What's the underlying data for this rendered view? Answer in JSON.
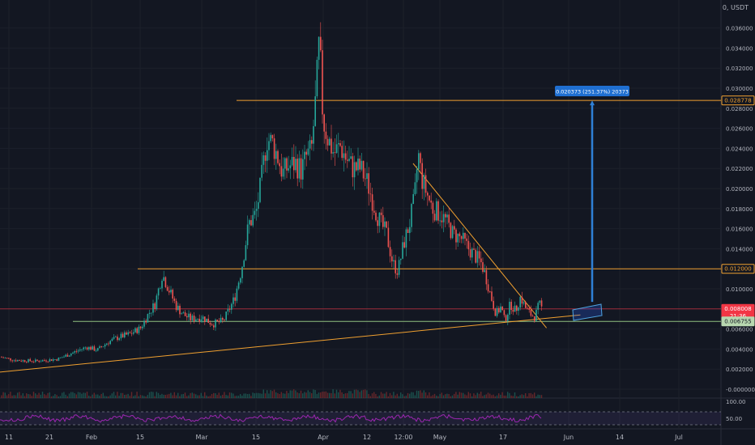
{
  "symbol_currency": "0, USDT",
  "chart_data": {
    "type": "candlestick",
    "ylim": [
      -0.0001,
      0.0374
    ],
    "y_ticks": [
      "0.036000",
      "0.034000",
      "0.032000",
      "0.030000",
      "0.028000",
      "0.026000",
      "0.024000",
      "0.022000",
      "0.020000",
      "0.018000",
      "0.016000",
      "0.014000",
      "0.012000",
      "0.010000",
      "0.008000",
      "0.006000",
      "0.004000",
      "0.002000",
      "-0.000000"
    ],
    "x_ticks": [
      "11",
      "21",
      "Feb",
      "15",
      "Mar",
      "15",
      "Apr",
      "12",
      "12:00",
      "May",
      "17",
      "Jun",
      "14",
      "Jul"
    ],
    "price_markers": [
      {
        "label": "0.028778",
        "color": "#f0a030",
        "style": "outline"
      },
      {
        "label": "0.012000",
        "color": "#f0a030",
        "style": "outline"
      },
      {
        "label": "0.008008",
        "sub": "21:36",
        "color": "#f23645",
        "style": "filled"
      },
      {
        "label": "0.006755",
        "color": "#b8d8b0",
        "style": "filled"
      }
    ],
    "horizontal_levels": [
      0.028778,
      0.012,
      0.008008,
      0.006755
    ],
    "measure_label": "0.020373 (251.37%) 20373",
    "trendlines": [
      {
        "from": [
          0.0,
          0.0017
        ],
        "to": [
          0.805,
          0.0074
        ],
        "color": "#f0a030"
      },
      {
        "from": [
          0.573,
          0.0225
        ],
        "to": [
          0.758,
          0.0061
        ],
        "color": "#f0a030"
      }
    ],
    "price_series": [
      [
        0.0,
        0.0032
      ],
      [
        0.02,
        0.0029
      ],
      [
        0.05,
        0.0028
      ],
      [
        0.08,
        0.003
      ],
      [
        0.1,
        0.0036
      ],
      [
        0.12,
        0.0042
      ],
      [
        0.135,
        0.0039
      ],
      [
        0.15,
        0.0047
      ],
      [
        0.165,
        0.0052
      ],
      [
        0.18,
        0.0055
      ],
      [
        0.195,
        0.0061
      ],
      [
        0.205,
        0.0074
      ],
      [
        0.215,
        0.0085
      ],
      [
        0.225,
        0.0115
      ],
      [
        0.235,
        0.0098
      ],
      [
        0.245,
        0.0082
      ],
      [
        0.255,
        0.0074
      ],
      [
        0.265,
        0.007
      ],
      [
        0.28,
        0.0072
      ],
      [
        0.295,
        0.0065
      ],
      [
        0.31,
        0.0068
      ],
      [
        0.325,
        0.009
      ],
      [
        0.335,
        0.012
      ],
      [
        0.345,
        0.0165
      ],
      [
        0.355,
        0.0175
      ],
      [
        0.362,
        0.0205
      ],
      [
        0.37,
        0.025
      ],
      [
        0.378,
        0.0245
      ],
      [
        0.385,
        0.0232
      ],
      [
        0.392,
        0.0215
      ],
      [
        0.4,
        0.0222
      ],
      [
        0.41,
        0.0225
      ],
      [
        0.418,
        0.0218
      ],
      [
        0.425,
        0.0232
      ],
      [
        0.432,
        0.0238
      ],
      [
        0.438,
        0.029
      ],
      [
        0.443,
        0.0348
      ],
      [
        0.448,
        0.0268
      ],
      [
        0.455,
        0.025
      ],
      [
        0.463,
        0.0235
      ],
      [
        0.472,
        0.0242
      ],
      [
        0.48,
        0.023
      ],
      [
        0.49,
        0.022
      ],
      [
        0.5,
        0.022
      ],
      [
        0.51,
        0.0205
      ],
      [
        0.52,
        0.018
      ],
      [
        0.528,
        0.0165
      ],
      [
        0.536,
        0.0155
      ],
      [
        0.545,
        0.0125
      ],
      [
        0.552,
        0.0118
      ],
      [
        0.56,
        0.0145
      ],
      [
        0.568,
        0.0165
      ],
      [
        0.575,
        0.019
      ],
      [
        0.58,
        0.0235
      ],
      [
        0.585,
        0.021
      ],
      [
        0.592,
        0.0195
      ],
      [
        0.6,
        0.018
      ],
      [
        0.61,
        0.0175
      ],
      [
        0.618,
        0.0168
      ],
      [
        0.628,
        0.0155
      ],
      [
        0.64,
        0.015
      ],
      [
        0.65,
        0.014
      ],
      [
        0.66,
        0.0132
      ],
      [
        0.668,
        0.0125
      ],
      [
        0.674,
        0.0112
      ],
      [
        0.68,
        0.0095
      ],
      [
        0.688,
        0.0075
      ],
      [
        0.695,
        0.0082
      ],
      [
        0.7,
        0.0068
      ],
      [
        0.708,
        0.0085
      ],
      [
        0.715,
        0.0078
      ],
      [
        0.722,
        0.0092
      ],
      [
        0.728,
        0.0082
      ],
      [
        0.735,
        0.0075
      ],
      [
        0.742,
        0.0072
      ],
      [
        0.748,
        0.0085
      ],
      [
        0.752,
        0.008
      ]
    ],
    "rsi_label": "50.00",
    "rsi_upper_label": "100.00"
  }
}
